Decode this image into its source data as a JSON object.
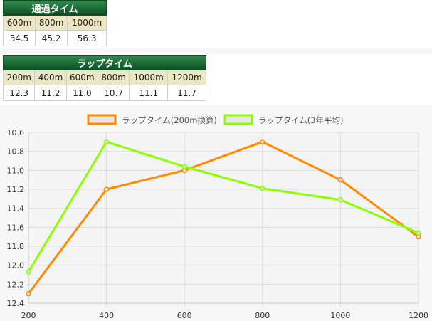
{
  "passing": {
    "title": "通過タイム",
    "headers": [
      "600m",
      "800m",
      "1000m"
    ],
    "values": [
      "34.5",
      "45.2",
      "56.3"
    ]
  },
  "lap": {
    "title": "ラップタイム",
    "headers": [
      "200m",
      "400m",
      "600m",
      "800m",
      "1000m",
      "1200m"
    ],
    "values": [
      "12.3",
      "11.2",
      "11.0",
      "10.7",
      "11.1",
      "11.7"
    ]
  },
  "chart_data": {
    "type": "line",
    "x": [
      200,
      400,
      600,
      800,
      1000,
      1200
    ],
    "x_tick_labels": [
      "200",
      "400",
      "600",
      "800",
      "1000",
      "1200"
    ],
    "y_tick_labels": [
      "10.6",
      "10.8",
      "11.0",
      "11.2",
      "11.4",
      "11.6",
      "11.8",
      "12.0",
      "12.2",
      "12.4"
    ],
    "ylim": [
      10.6,
      12.4
    ],
    "y_reversed": true,
    "grid": true,
    "legend_position": "top",
    "series": [
      {
        "name": "ラップタイム(200m換算)",
        "values": [
          12.3,
          11.2,
          11.0,
          10.7,
          11.1,
          11.7
        ],
        "color": "#ff8a00"
      },
      {
        "name": "ラップタイム(3年平均)",
        "values": [
          12.07,
          10.7,
          10.96,
          11.19,
          11.31,
          11.66
        ],
        "color": "#8bff00"
      }
    ]
  }
}
